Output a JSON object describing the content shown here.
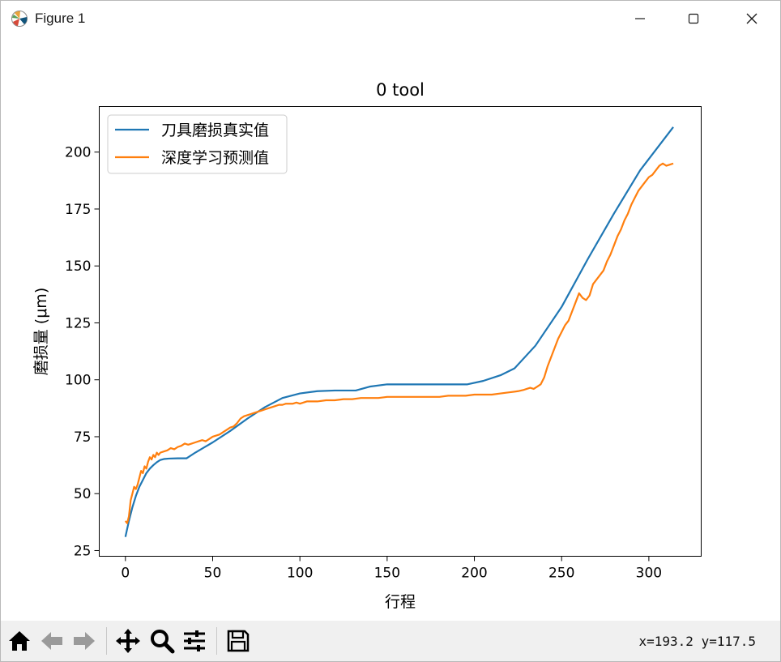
{
  "window": {
    "title": "Figure 1"
  },
  "toolbar": {
    "coords": "x=193.2  y=117.5",
    "buttons": [
      "home-icon",
      "back-icon",
      "forward-icon",
      "pan-icon",
      "zoom-icon",
      "configure-icon",
      "save-icon"
    ]
  },
  "chart_data": {
    "type": "line",
    "title": "0 tool",
    "xlabel": "行程",
    "ylabel": "磨损量 (μm)",
    "xlim": [
      -15,
      330
    ],
    "ylim": [
      22.5,
      220
    ],
    "xticks": [
      0,
      50,
      100,
      150,
      200,
      250,
      300
    ],
    "yticks": [
      25,
      50,
      75,
      100,
      125,
      150,
      175,
      200
    ],
    "grid": false,
    "legend": "top-left",
    "series": [
      {
        "name": "刀具磨损真实值",
        "color": "#1f77b4",
        "x": [
          0,
          2,
          4,
          6,
          8,
          10,
          12,
          14,
          16,
          18,
          20,
          22,
          25,
          30,
          35,
          40,
          50,
          60,
          70,
          80,
          90,
          100,
          110,
          120,
          132,
          140,
          150,
          160,
          170,
          180,
          196,
          205,
          215,
          223,
          235,
          250,
          265,
          280,
          295,
          314
        ],
        "y": [
          31,
          38,
          44,
          49,
          53,
          56,
          59,
          61,
          62.5,
          63.8,
          64.8,
          65.2,
          65.4,
          65.5,
          65.5,
          68,
          72.5,
          77.5,
          83,
          88,
          92,
          94,
          95,
          95.3,
          95.3,
          97,
          98,
          98,
          98,
          98,
          98,
          99.5,
          102,
          105,
          115,
          132,
          153,
          173,
          192,
          211
        ]
      },
      {
        "name": "深度学习预测值",
        "color": "#ff7f0e",
        "x": [
          0,
          1,
          2,
          3,
          4,
          5,
          6,
          7,
          8,
          9,
          10,
          11,
          12,
          13,
          14,
          15,
          16,
          17,
          18,
          19,
          20,
          22,
          24,
          26,
          28,
          30,
          32,
          34,
          36,
          38,
          40,
          42,
          44,
          46,
          48,
          50,
          52,
          54,
          56,
          58,
          60,
          62,
          64,
          66,
          68,
          70,
          72,
          74,
          76,
          78,
          80,
          82,
          84,
          86,
          88,
          90,
          92,
          94,
          96,
          98,
          100,
          102,
          104,
          106,
          108,
          110,
          115,
          120,
          125,
          130,
          135,
          140,
          145,
          150,
          155,
          160,
          165,
          170,
          175,
          180,
          185,
          190,
          195,
          200,
          205,
          210,
          215,
          220,
          225,
          228,
          230,
          232,
          234,
          236,
          238,
          240,
          242,
          244,
          246,
          248,
          250,
          252,
          254,
          256,
          258,
          260,
          262,
          264,
          266,
          268,
          270,
          272,
          274,
          276,
          278,
          280,
          282,
          284,
          286,
          288,
          290,
          292,
          294,
          296,
          298,
          300,
          302,
          304,
          306,
          308,
          310,
          312,
          314
        ],
        "y": [
          38,
          37,
          40,
          47,
          50,
          53,
          52,
          54,
          57,
          60,
          59,
          62,
          61,
          64,
          66,
          65,
          67,
          66,
          68,
          67,
          68,
          68.5,
          69,
          70,
          69.5,
          70.5,
          71,
          72,
          71.5,
          72,
          72.5,
          73,
          73.5,
          73,
          74,
          75,
          75.5,
          76,
          77,
          78,
          79,
          79.5,
          81,
          83,
          84,
          84.5,
          85,
          85.5,
          86,
          86.5,
          87,
          87.5,
          88,
          88.5,
          89,
          89,
          89.5,
          89.5,
          89.5,
          90,
          89.5,
          90,
          90.5,
          90.5,
          90.5,
          90.5,
          91,
          91,
          91.5,
          91.5,
          92,
          92,
          92,
          92.5,
          92.5,
          92.5,
          92.5,
          92.5,
          92.5,
          92.5,
          93,
          93,
          93,
          93.5,
          93.5,
          93.5,
          94,
          94.5,
          95,
          95.5,
          96,
          96.5,
          96,
          97,
          98,
          101,
          106,
          110,
          114,
          118,
          121,
          124,
          126,
          130,
          134,
          138,
          136,
          135,
          137,
          142,
          144,
          146,
          148,
          152,
          155,
          159,
          163,
          166,
          170,
          173,
          177,
          180,
          183,
          185,
          187,
          189,
          190,
          192,
          194,
          195,
          194,
          194.5,
          195
        ]
      }
    ]
  }
}
